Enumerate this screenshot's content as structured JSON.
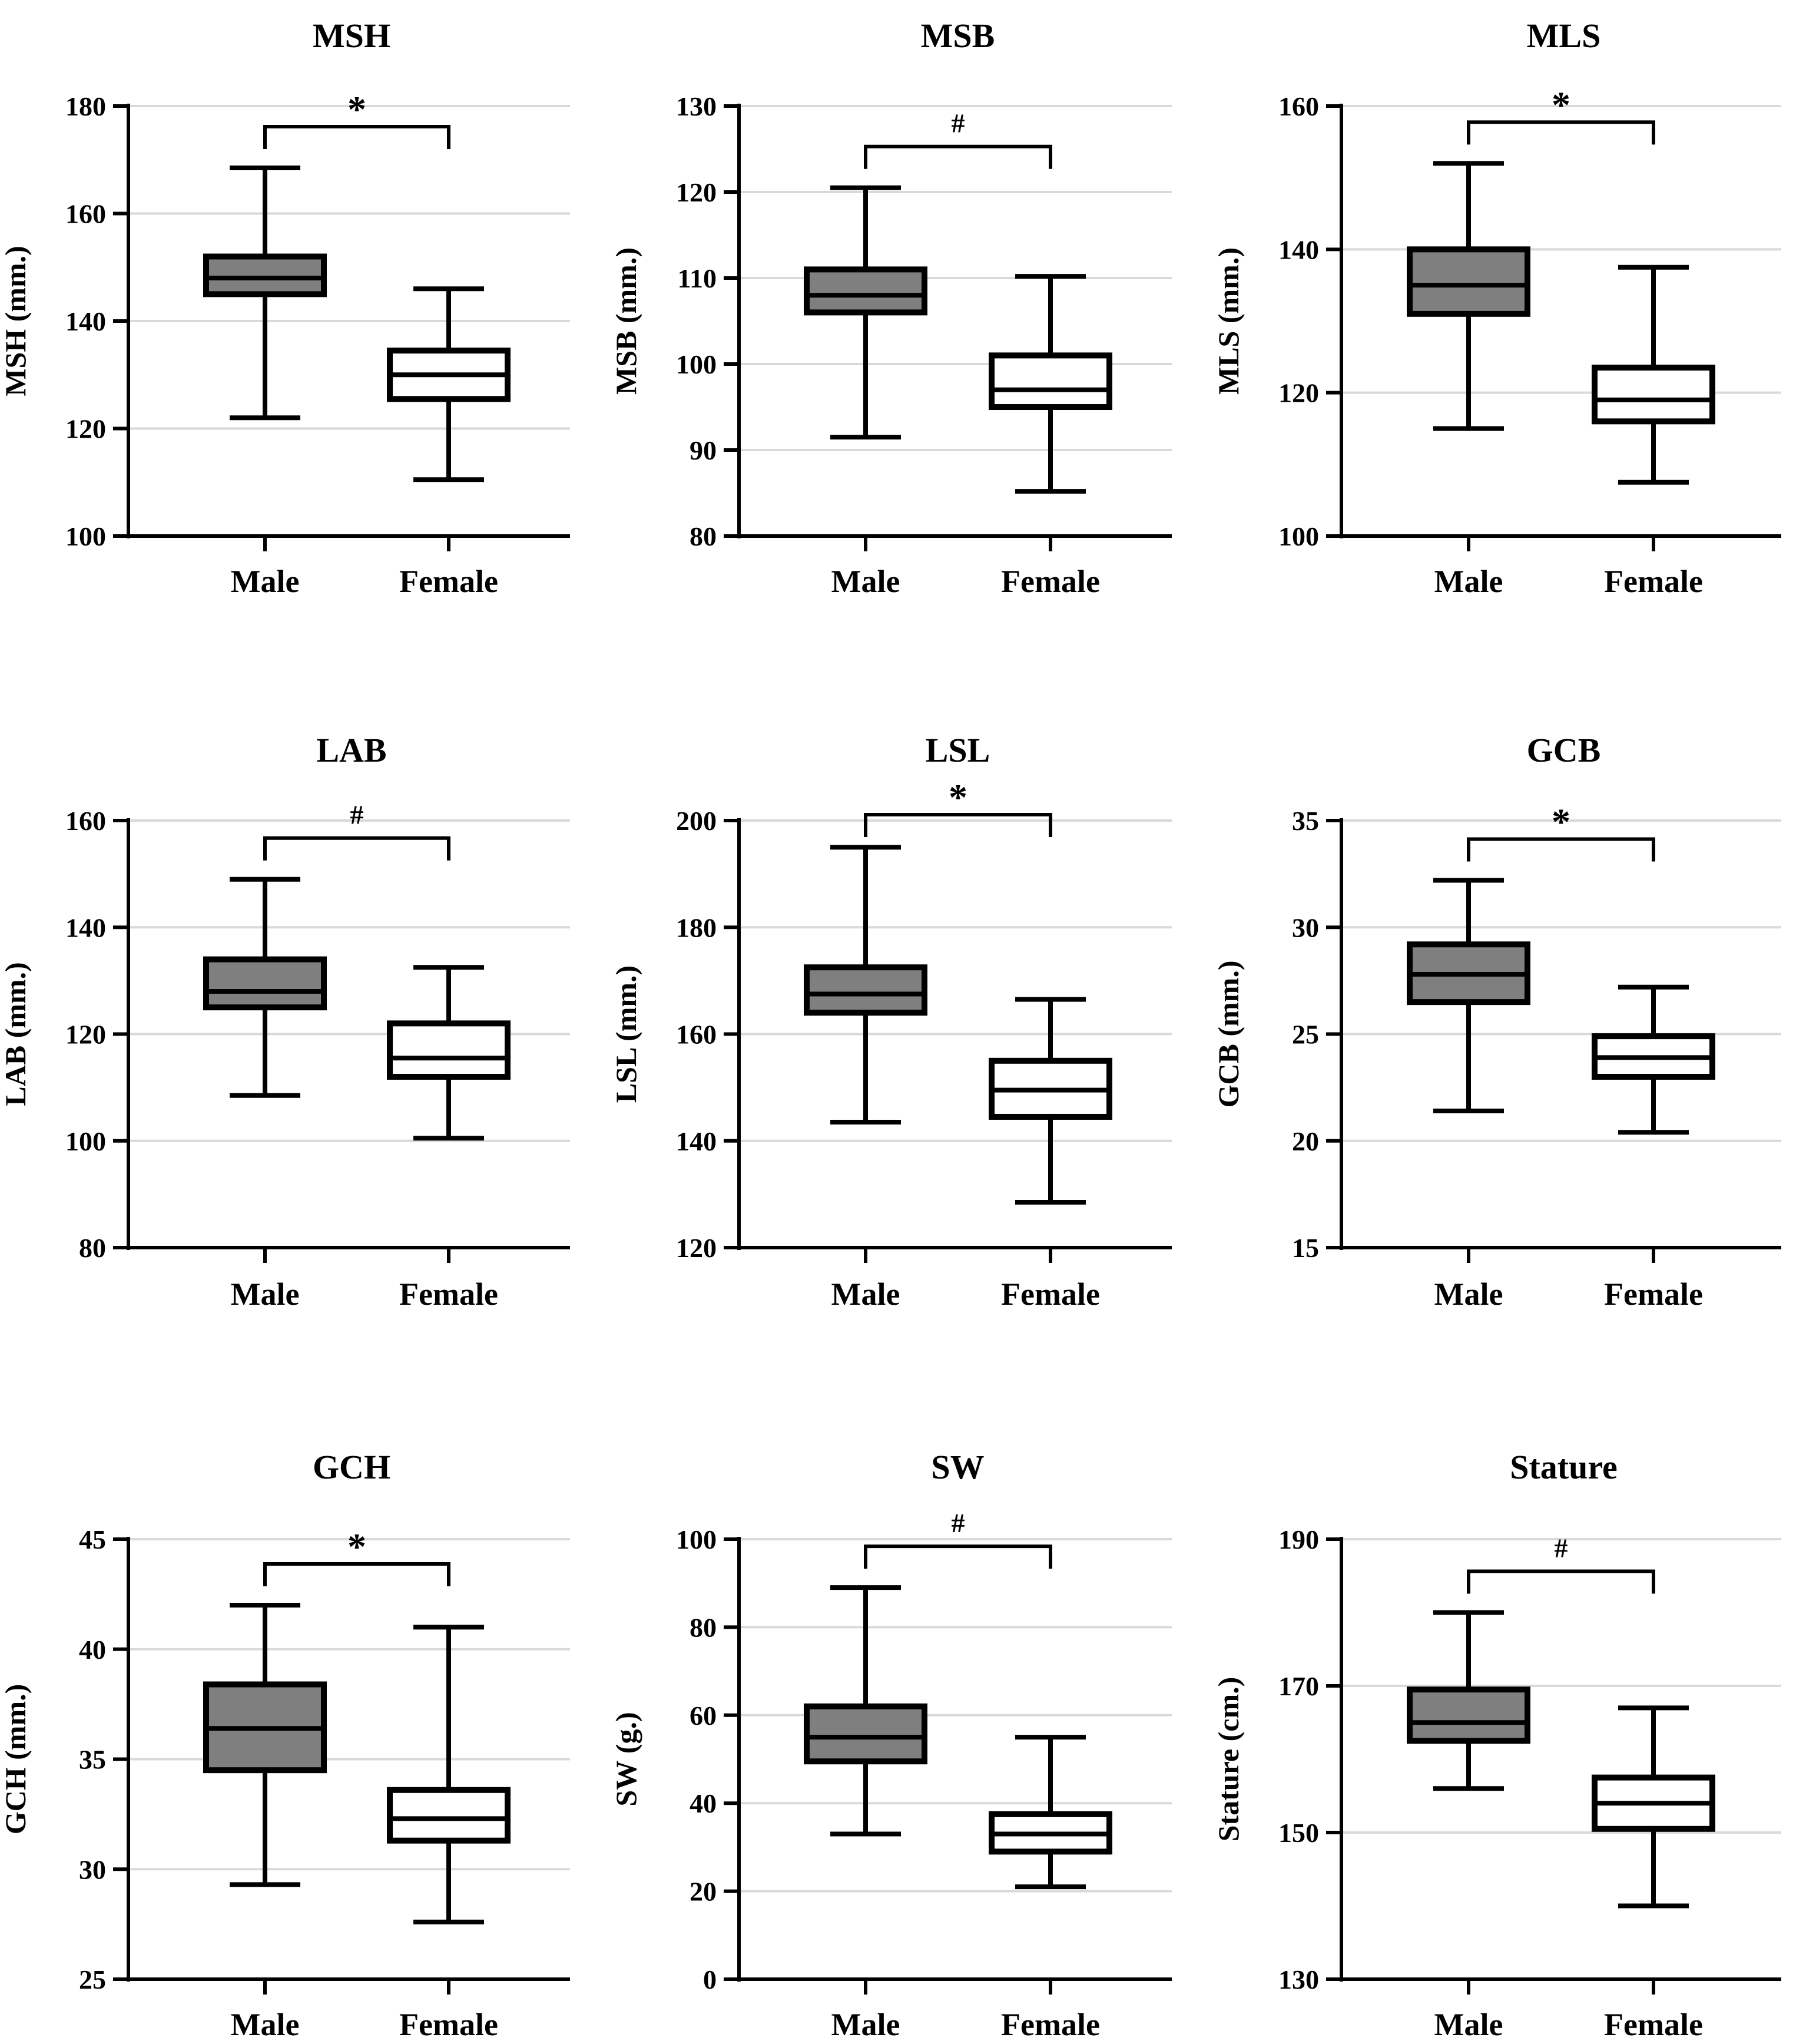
{
  "figure": {
    "colors": {
      "male_box": "#7f7f7f",
      "female_box": "#ffffff",
      "stroke": "#000000",
      "grid": "#d9d9d9"
    }
  },
  "chart_data": [
    {
      "type": "box",
      "title": "MSH",
      "ylabel": "MSH (mm.)",
      "ylim": [
        100,
        180
      ],
      "yticks": [
        100,
        120,
        140,
        160,
        180
      ],
      "yticks_fmt": [
        "100",
        "120",
        "140",
        "160",
        "180"
      ],
      "categories": [
        "Male",
        "Female"
      ],
      "significance": "*",
      "boxes": [
        {
          "name": "Male",
          "min": 122,
          "q1": 145,
          "median": 148,
          "q3": 152,
          "max": 168.5
        },
        {
          "name": "Female",
          "min": 110.5,
          "q1": 125.5,
          "median": 130,
          "q3": 134.5,
          "max": 146
        }
      ]
    },
    {
      "type": "box",
      "title": "MSB",
      "ylabel": "MSB (mm.)",
      "ylim": [
        80,
        130
      ],
      "yticks": [
        80,
        90,
        100,
        110,
        120,
        130
      ],
      "yticks_fmt": [
        "80",
        "90",
        "100",
        "110",
        "120",
        "130"
      ],
      "categories": [
        "Male",
        "Female"
      ],
      "significance": "#",
      "boxes": [
        {
          "name": "Male",
          "min": 91.5,
          "q1": 106,
          "median": 108,
          "q3": 111,
          "max": 120.5
        },
        {
          "name": "Female",
          "min": 85.2,
          "q1": 95,
          "median": 97,
          "q3": 101,
          "max": 110.2
        }
      ]
    },
    {
      "type": "box",
      "title": "MLS",
      "ylabel": "MLS (mm.)",
      "ylim": [
        100,
        160
      ],
      "yticks": [
        100,
        120,
        140,
        160
      ],
      "yticks_fmt": [
        "100",
        "120",
        "140",
        "160"
      ],
      "categories": [
        "Male",
        "Female"
      ],
      "significance": "*",
      "boxes": [
        {
          "name": "Male",
          "min": 115,
          "q1": 131,
          "median": 135,
          "q3": 140,
          "max": 152
        },
        {
          "name": "Female",
          "min": 107.5,
          "q1": 116,
          "median": 119,
          "q3": 123.5,
          "max": 137.5
        }
      ]
    },
    {
      "type": "box",
      "title": "LAB",
      "ylabel": "LAB (mm.)",
      "ylim": [
        80,
        160
      ],
      "yticks": [
        80,
        100,
        120,
        140,
        160
      ],
      "yticks_fmt": [
        "80",
        "100",
        "120",
        "140",
        "160"
      ],
      "categories": [
        "Male",
        "Female"
      ],
      "significance": "#",
      "boxes": [
        {
          "name": "Male",
          "min": 108.5,
          "q1": 125,
          "median": 128,
          "q3": 134,
          "max": 149
        },
        {
          "name": "Female",
          "min": 100.5,
          "q1": 112,
          "median": 115.5,
          "q3": 122,
          "max": 132.5
        }
      ]
    },
    {
      "type": "box",
      "title": "LSL",
      "ylabel": "LSL (mm.)",
      "ylim": [
        120,
        200
      ],
      "yticks": [
        120,
        140,
        160,
        180,
        200
      ],
      "yticks_fmt": [
        "120",
        "140",
        "160",
        "180",
        "200"
      ],
      "categories": [
        "Male",
        "Female"
      ],
      "significance": "*",
      "boxes": [
        {
          "name": "Male",
          "min": 143.5,
          "q1": 164,
          "median": 167.5,
          "q3": 172.5,
          "max": 195
        },
        {
          "name": "Female",
          "min": 128.5,
          "q1": 144.5,
          "median": 149.5,
          "q3": 155,
          "max": 166.5
        }
      ]
    },
    {
      "type": "box",
      "title": "GCB",
      "ylabel": "GCB (mm.)",
      "ylim": [
        15,
        35
      ],
      "yticks": [
        15,
        20,
        25,
        30,
        35
      ],
      "yticks_fmt": [
        "15",
        "20",
        "25",
        "30",
        "35"
      ],
      "categories": [
        "Male",
        "Female"
      ],
      "significance": "*",
      "boxes": [
        {
          "name": "Male",
          "min": 21.4,
          "q1": 26.5,
          "median": 27.8,
          "q3": 29.2,
          "max": 32.2
        },
        {
          "name": "Female",
          "min": 20.4,
          "q1": 23,
          "median": 23.9,
          "q3": 24.9,
          "max": 27.2
        }
      ]
    },
    {
      "type": "box",
      "title": "GCH",
      "ylabel": "GCH (mm.)",
      "ylim": [
        25,
        45
      ],
      "yticks": [
        25,
        30,
        35,
        40,
        45
      ],
      "yticks_fmt": [
        "25",
        "30",
        "35",
        "40",
        "45"
      ],
      "categories": [
        "Male",
        "Female"
      ],
      "significance": "*",
      "boxes": [
        {
          "name": "Male",
          "min": 29.3,
          "q1": 34.5,
          "median": 36.4,
          "q3": 38.4,
          "max": 42
        },
        {
          "name": "Female",
          "min": 27.6,
          "q1": 31.3,
          "median": 32.3,
          "q3": 33.6,
          "max": 41
        }
      ]
    },
    {
      "type": "box",
      "title": "SW",
      "ylabel": "SW (g.)",
      "ylim": [
        0,
        100
      ],
      "yticks": [
        0,
        20,
        40,
        60,
        80,
        100
      ],
      "yticks_fmt": [
        "0",
        "20",
        "40",
        "60",
        "80",
        "100"
      ],
      "categories": [
        "Male",
        "Female"
      ],
      "significance": "#",
      "boxes": [
        {
          "name": "Male",
          "min": 33,
          "q1": 49.5,
          "median": 55,
          "q3": 62,
          "max": 89
        },
        {
          "name": "Female",
          "min": 21,
          "q1": 29,
          "median": 33,
          "q3": 37.5,
          "max": 55
        }
      ]
    },
    {
      "type": "box",
      "title": "Stature",
      "ylabel": "Stature (cm.)",
      "ylim": [
        130,
        190
      ],
      "yticks": [
        130,
        150,
        170,
        190
      ],
      "yticks_fmt": [
        "130",
        "150",
        "170",
        "190"
      ],
      "categories": [
        "Male",
        "Female"
      ],
      "significance": "#",
      "boxes": [
        {
          "name": "Male",
          "min": 156,
          "q1": 162.5,
          "median": 165,
          "q3": 169.5,
          "max": 180
        },
        {
          "name": "Female",
          "min": 140,
          "q1": 150.5,
          "median": 154,
          "q3": 157.5,
          "max": 167
        }
      ]
    }
  ]
}
